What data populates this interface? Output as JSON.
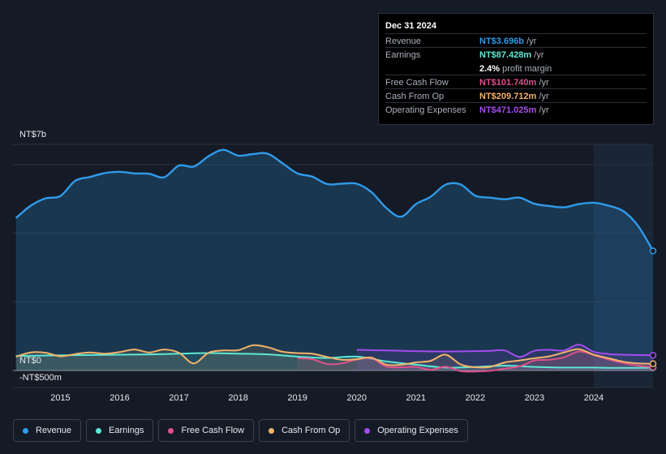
{
  "tooltip": {
    "date": "Dec 31 2024",
    "rows": [
      {
        "label": "Revenue",
        "value": "NT$3.696b",
        "unit": " /yr",
        "color": "#2f9bea"
      },
      {
        "label": "Earnings",
        "value": "NT$87.428m",
        "unit": " /yr",
        "color": "#5ee8d3"
      },
      {
        "label": "",
        "value": "2.4%",
        "unit": " profit margin",
        "color": "#ffffff"
      },
      {
        "label": "Free Cash Flow",
        "value": "NT$101.740m",
        "unit": " /yr",
        "color": "#e0508a"
      },
      {
        "label": "Cash From Op",
        "value": "NT$209.712m",
        "unit": " /yr",
        "color": "#f2b36a"
      },
      {
        "label": "Operating Expenses",
        "value": "NT$471.025m",
        "unit": " /yr",
        "color": "#a44cf0"
      }
    ]
  },
  "chart_data": {
    "type": "area",
    "title": "",
    "xlabel": "",
    "ylabel": "",
    "y_axis_labels": {
      "top": "NT$7b",
      "zero": "NT$0",
      "bottom": "-NT$500m"
    },
    "ylim": [
      -500,
      7000
    ],
    "xlim": [
      2014.2,
      2025.0
    ],
    "x_ticks": [
      "2015",
      "2016",
      "2017",
      "2018",
      "2019",
      "2020",
      "2021",
      "2022",
      "2023",
      "2024"
    ],
    "forecast_start": 2024.0,
    "series": [
      {
        "name": "Revenue",
        "color": "#2f9bea",
        "x": [
          2014.25,
          2014.5,
          2014.75,
          2015.0,
          2015.25,
          2015.5,
          2015.75,
          2016.0,
          2016.25,
          2016.5,
          2016.75,
          2017.0,
          2017.25,
          2017.5,
          2017.75,
          2018.0,
          2018.25,
          2018.5,
          2018.75,
          2019.0,
          2019.25,
          2019.5,
          2019.75,
          2020.0,
          2020.25,
          2020.5,
          2020.75,
          2021.0,
          2021.25,
          2021.5,
          2021.75,
          2022.0,
          2022.25,
          2022.5,
          2022.75,
          2023.0,
          2023.25,
          2023.5,
          2023.75,
          2024.0,
          2024.25,
          2024.5,
          2024.75,
          2025.0
        ],
        "values": [
          4720,
          5100,
          5330,
          5400,
          5870,
          5990,
          6110,
          6150,
          6100,
          6090,
          5980,
          6340,
          6310,
          6630,
          6830,
          6650,
          6700,
          6710,
          6410,
          6100,
          6000,
          5770,
          5780,
          5780,
          5520,
          5030,
          4760,
          5150,
          5380,
          5750,
          5760,
          5410,
          5350,
          5300,
          5350,
          5160,
          5090,
          5050,
          5150,
          5190,
          5100,
          4930,
          4470,
          3700
        ]
      },
      {
        "name": "Earnings",
        "color": "#5ee8d3",
        "x": [
          2014.25,
          2015.0,
          2015.5,
          2016.0,
          2016.5,
          2017.0,
          2017.5,
          2018.0,
          2018.5,
          2019.0,
          2019.5,
          2020.0,
          2020.5,
          2021.0,
          2021.5,
          2022.0,
          2022.5,
          2023.0,
          2023.5,
          2024.0,
          2024.5,
          2025.0
        ],
        "values": [
          450,
          470,
          480,
          490,
          500,
          520,
          540,
          520,
          500,
          430,
          390,
          430,
          280,
          180,
          90,
          110,
          150,
          110,
          90,
          90,
          80,
          87
        ]
      },
      {
        "name": "Free Cash Flow",
        "color": "#e0508a",
        "x": [
          2019.0,
          2019.25,
          2019.5,
          2019.75,
          2020.0,
          2020.25,
          2020.5,
          2020.75,
          2021.0,
          2021.25,
          2021.5,
          2021.75,
          2022.0,
          2022.25,
          2022.5,
          2022.75,
          2023.0,
          2023.25,
          2023.5,
          2023.75,
          2024.0,
          2024.25,
          2024.5,
          2024.75,
          2025.0
        ],
        "values": [
          380,
          350,
          200,
          220,
          340,
          380,
          120,
          100,
          110,
          20,
          120,
          -20,
          -30,
          -10,
          60,
          130,
          310,
          330,
          410,
          590,
          480,
          340,
          230,
          150,
          102
        ]
      },
      {
        "name": "Cash From Op",
        "color": "#f2b36a",
        "x": [
          2014.25,
          2014.5,
          2014.75,
          2015.0,
          2015.25,
          2015.5,
          2015.75,
          2016.0,
          2016.25,
          2016.5,
          2016.75,
          2017.0,
          2017.25,
          2017.5,
          2017.75,
          2018.0,
          2018.25,
          2018.5,
          2018.75,
          2019.0,
          2019.25,
          2019.5,
          2019.75,
          2020.0,
          2020.25,
          2020.5,
          2020.75,
          2021.0,
          2021.25,
          2021.5,
          2021.75,
          2022.0,
          2022.25,
          2022.5,
          2022.75,
          2023.0,
          2023.25,
          2023.5,
          2023.75,
          2024.0,
          2024.25,
          2024.5,
          2024.75,
          2025.0
        ],
        "values": [
          430,
          560,
          550,
          440,
          510,
          560,
          520,
          570,
          650,
          560,
          650,
          550,
          220,
          550,
          620,
          630,
          780,
          720,
          580,
          540,
          520,
          420,
          330,
          350,
          400,
          180,
          180,
          250,
          300,
          490,
          190,
          100,
          110,
          250,
          310,
          380,
          440,
          560,
          660,
          490,
          380,
          270,
          220,
          210
        ]
      },
      {
        "name": "Operating Expenses",
        "color": "#a44cf0",
        "x": [
          2020.0,
          2020.5,
          2021.0,
          2021.5,
          2022.0,
          2022.25,
          2022.5,
          2022.75,
          2023.0,
          2023.25,
          2023.5,
          2023.75,
          2024.0,
          2024.25,
          2024.5,
          2024.75,
          2025.0
        ],
        "values": [
          640,
          620,
          600,
          590,
          600,
          610,
          620,
          420,
          610,
          640,
          620,
          800,
          580,
          510,
          490,
          480,
          471
        ]
      }
    ]
  },
  "legend": [
    {
      "label": "Revenue",
      "color": "#2f9bea"
    },
    {
      "label": "Earnings",
      "color": "#5ee8d3"
    },
    {
      "label": "Free Cash Flow",
      "color": "#e0508a"
    },
    {
      "label": "Cash From Op",
      "color": "#f2b36a"
    },
    {
      "label": "Operating Expenses",
      "color": "#a44cf0"
    }
  ]
}
